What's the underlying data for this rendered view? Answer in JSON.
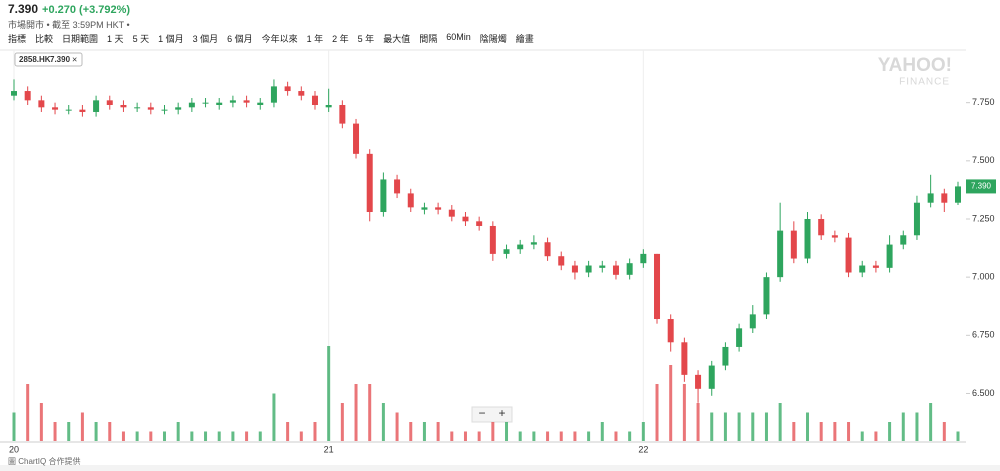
{
  "header": {
    "price": "7.390",
    "change": "+0.270 (+3.792%)",
    "status": "市場開市 • 截至 3:59PM HKT •"
  },
  "toolbar": [
    "指標",
    "比較",
    "日期範圍",
    "1 天",
    "5 天",
    "1 個月",
    "3 個月",
    "6 個月",
    "今年以來",
    "1 年",
    "2 年",
    "5 年",
    "最大值",
    "間隔",
    "60Min",
    "陰陽燭",
    "繪畫"
  ],
  "symbol_tag": {
    "symbol": "2858.HK",
    "price": "7.390",
    "close_icon": "×"
  },
  "watermark": {
    "brand": "YAHOO!",
    "sub": "FINANCE"
  },
  "last_price_label": "7.390",
  "zoom": {
    "out": "−",
    "in": "+"
  },
  "footer": "圖 ChartIQ 合作提供",
  "chart_data": {
    "type": "candlestick",
    "categories": [
      "20",
      null,
      null,
      null,
      null,
      null,
      null,
      null,
      null,
      null,
      null,
      null,
      null,
      null,
      null,
      null,
      null,
      null,
      null,
      null,
      null,
      null,
      null,
      "21",
      null,
      null,
      null,
      null,
      null,
      null,
      null,
      null,
      null,
      null,
      null,
      null,
      null,
      null,
      null,
      null,
      null,
      null,
      null,
      null,
      null,
      null,
      "22",
      null,
      null,
      null,
      null,
      null,
      null,
      null,
      null,
      null,
      null,
      null,
      null,
      null,
      null,
      null,
      null,
      null,
      null,
      null,
      null,
      null,
      null,
      null
    ],
    "open": [
      7.78,
      7.8,
      7.76,
      7.73,
      7.72,
      7.72,
      7.71,
      7.76,
      7.74,
      7.73,
      7.73,
      7.72,
      7.72,
      7.73,
      7.75,
      7.74,
      7.75,
      7.76,
      7.74,
      7.75,
      7.82,
      7.8,
      7.78,
      7.73,
      7.74,
      7.66,
      7.53,
      7.28,
      7.42,
      7.36,
      7.29,
      7.3,
      7.29,
      7.26,
      7.24,
      7.22,
      7.1,
      7.12,
      7.14,
      7.15,
      7.09,
      7.05,
      7.02,
      7.04,
      7.05,
      7.01,
      7.06,
      7.1,
      6.82,
      6.72,
      6.58,
      6.52,
      6.62,
      6.7,
      6.78,
      6.84,
      7.0,
      7.2,
      7.08,
      7.25,
      7.18,
      7.17,
      7.02,
      7.05,
      7.04,
      7.14,
      7.18,
      7.32,
      7.36,
      7.32
    ],
    "high": [
      7.85,
      7.82,
      7.78,
      7.75,
      7.74,
      7.74,
      7.78,
      7.78,
      7.76,
      7.75,
      7.75,
      7.74,
      7.75,
      7.77,
      7.77,
      7.77,
      7.78,
      7.78,
      7.77,
      7.85,
      7.84,
      7.82,
      7.8,
      7.81,
      7.76,
      7.68,
      7.55,
      7.45,
      7.44,
      7.38,
      7.32,
      7.32,
      7.31,
      7.28,
      7.26,
      7.24,
      7.14,
      7.16,
      7.18,
      7.17,
      7.11,
      7.07,
      7.07,
      7.07,
      7.07,
      7.08,
      7.12,
      7.1,
      6.84,
      6.74,
      6.6,
      6.64,
      6.72,
      6.8,
      6.88,
      7.02,
      7.32,
      7.24,
      7.28,
      7.27,
      7.2,
      7.19,
      7.07,
      7.07,
      7.18,
      7.2,
      7.35,
      7.44,
      7.38,
      7.41
    ],
    "low": [
      7.76,
      7.74,
      7.71,
      7.7,
      7.7,
      7.69,
      7.69,
      7.72,
      7.71,
      7.71,
      7.7,
      7.7,
      7.7,
      7.71,
      7.73,
      7.72,
      7.73,
      7.73,
      7.72,
      7.73,
      7.78,
      7.76,
      7.72,
      7.71,
      7.64,
      7.51,
      7.24,
      7.26,
      7.34,
      7.28,
      7.27,
      7.27,
      7.24,
      7.22,
      7.2,
      7.07,
      7.08,
      7.1,
      7.12,
      7.07,
      7.03,
      6.99,
      7.0,
      7.02,
      6.99,
      6.99,
      7.04,
      6.8,
      6.68,
      6.55,
      6.46,
      6.49,
      6.6,
      6.68,
      6.76,
      6.82,
      6.98,
      7.06,
      7.06,
      7.16,
      7.15,
      7.0,
      7.0,
      7.02,
      7.02,
      7.12,
      7.16,
      7.3,
      7.28,
      7.31
    ],
    "close": [
      7.8,
      7.76,
      7.73,
      7.72,
      7.72,
      7.71,
      7.76,
      7.74,
      7.73,
      7.73,
      7.72,
      7.72,
      7.73,
      7.75,
      7.75,
      7.75,
      7.76,
      7.75,
      7.75,
      7.82,
      7.8,
      7.78,
      7.74,
      7.74,
      7.66,
      7.53,
      7.28,
      7.42,
      7.36,
      7.3,
      7.3,
      7.29,
      7.26,
      7.24,
      7.22,
      7.1,
      7.12,
      7.14,
      7.15,
      7.09,
      7.05,
      7.02,
      7.05,
      7.05,
      7.01,
      7.06,
      7.1,
      6.82,
      6.72,
      6.58,
      6.52,
      6.62,
      6.7,
      6.78,
      6.84,
      7.0,
      7.2,
      7.08,
      7.25,
      7.18,
      7.17,
      7.02,
      7.05,
      7.04,
      7.14,
      7.18,
      7.32,
      7.36,
      7.32,
      7.39
    ],
    "volume": [
      3,
      6,
      4,
      2,
      2,
      3,
      2,
      2,
      1,
      1,
      1,
      1,
      2,
      1,
      1,
      1,
      1,
      1,
      1,
      5,
      2,
      1,
      2,
      10,
      4,
      6,
      6,
      4,
      3,
      2,
      2,
      2,
      1,
      1,
      1,
      2,
      2,
      1,
      1,
      1,
      1,
      1,
      1,
      2,
      1,
      1,
      2,
      6,
      8,
      6,
      4,
      3,
      3,
      3,
      3,
      3,
      4,
      2,
      3,
      2,
      2,
      2,
      1,
      1,
      2,
      3,
      3,
      4,
      2,
      1
    ],
    "ylim": [
      6.3,
      7.985
    ],
    "yticks": [
      {
        "value": 6.5,
        "label": "6.500"
      },
      {
        "value": 6.75,
        "label": "6.750"
      },
      {
        "value": 7,
        "label": "7.000"
      },
      {
        "value": 7.25,
        "label": "7.250"
      },
      {
        "value": 7.5,
        "label": "7.500"
      },
      {
        "value": 7.75,
        "label": "7.750"
      }
    ],
    "up_color": "#2ea55e",
    "down_color": "#e3474b",
    "grid": false
  }
}
